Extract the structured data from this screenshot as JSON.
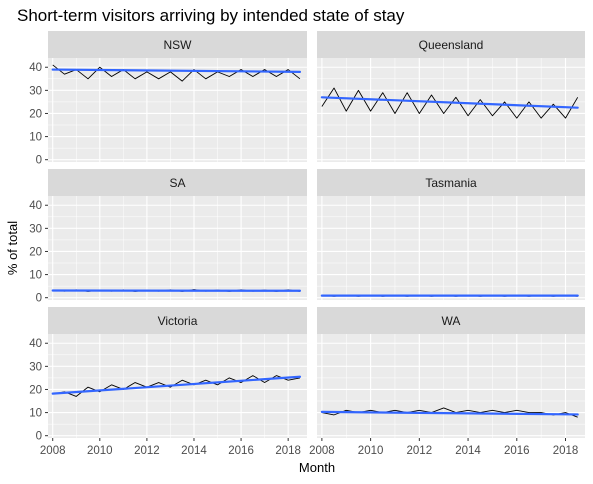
{
  "chart_data": {
    "type": "line",
    "title": "Short-term visitors arriving by intended state of stay",
    "xlabel": "Month",
    "ylabel": "% of total",
    "xlim": [
      2007.8,
      2018.8
    ],
    "ylim": [
      -1,
      44
    ],
    "x_ticks": [
      2008,
      2010,
      2012,
      2014,
      2016,
      2018
    ],
    "y_ticks": [
      0,
      10,
      20,
      30,
      40
    ],
    "x_tick_labels": [
      "2008",
      "2010",
      "2012",
      "2014",
      "2016",
      "2018"
    ],
    "y_tick_labels": [
      "0",
      "10",
      "20",
      "30",
      "40"
    ],
    "facets": [
      {
        "name": "NSW",
        "x": [
          2008.0,
          2008.5,
          2009.0,
          2009.5,
          2010.0,
          2010.5,
          2011.0,
          2011.5,
          2012.0,
          2012.5,
          2013.0,
          2013.5,
          2014.0,
          2014.5,
          2015.0,
          2015.5,
          2016.0,
          2016.5,
          2017.0,
          2017.5,
          2018.0,
          2018.5
        ],
        "values": [
          41,
          37,
          39,
          35,
          40,
          36,
          39,
          35,
          38,
          35,
          38,
          34,
          39,
          35,
          38,
          36,
          39,
          36,
          39,
          36,
          39,
          35
        ],
        "trend": [
          39,
          38
        ]
      },
      {
        "name": "Queensland",
        "x": [
          2008.0,
          2008.5,
          2009.0,
          2009.5,
          2010.0,
          2010.5,
          2011.0,
          2011.5,
          2012.0,
          2012.5,
          2013.0,
          2013.5,
          2014.0,
          2014.5,
          2015.0,
          2015.5,
          2016.0,
          2016.5,
          2017.0,
          2017.5,
          2018.0,
          2018.5
        ],
        "values": [
          23,
          31,
          21,
          30,
          21,
          29,
          20,
          29,
          20,
          28,
          20,
          27,
          19,
          26,
          19,
          25,
          18,
          25,
          18,
          24,
          18,
          27
        ],
        "trend": [
          27,
          22.5
        ]
      },
      {
        "name": "SA",
        "x": [
          2008.0,
          2008.5,
          2009.0,
          2009.5,
          2010.0,
          2010.5,
          2011.0,
          2011.5,
          2012.0,
          2012.5,
          2013.0,
          2013.5,
          2014.0,
          2014.5,
          2015.0,
          2015.5,
          2016.0,
          2016.5,
          2017.0,
          2017.5,
          2018.0,
          2018.5
        ],
        "values": [
          3.3,
          2.8,
          3.4,
          2.7,
          3.3,
          2.8,
          3.4,
          2.7,
          3.3,
          2.8,
          3.4,
          2.7,
          3.5,
          2.8,
          3.3,
          2.7,
          3.4,
          2.8,
          3.3,
          2.7,
          3.4,
          2.7
        ],
        "trend": [
          3.1,
          3.0
        ]
      },
      {
        "name": "Tasmania",
        "x": [
          2008.0,
          2008.5,
          2009.0,
          2009.5,
          2010.0,
          2010.5,
          2011.0,
          2011.5,
          2012.0,
          2012.5,
          2013.0,
          2013.5,
          2014.0,
          2014.5,
          2015.0,
          2015.5,
          2016.0,
          2016.5,
          2017.0,
          2017.5,
          2018.0,
          2018.5
        ],
        "values": [
          1.1,
          0.6,
          1.1,
          0.6,
          1.1,
          0.6,
          1.1,
          0.6,
          1.1,
          0.6,
          1.1,
          0.6,
          1.1,
          0.6,
          1.1,
          0.6,
          1.1,
          0.6,
          1.1,
          0.6,
          1.1,
          0.6
        ],
        "trend": [
          0.9,
          0.9
        ]
      },
      {
        "name": "Victoria",
        "x": [
          2008.0,
          2008.5,
          2009.0,
          2009.5,
          2010.0,
          2010.5,
          2011.0,
          2011.5,
          2012.0,
          2012.5,
          2013.0,
          2013.5,
          2014.0,
          2014.5,
          2015.0,
          2015.5,
          2016.0,
          2016.5,
          2017.0,
          2017.5,
          2018.0,
          2018.5
        ],
        "values": [
          18,
          19,
          17,
          21,
          19,
          22,
          20,
          23,
          21,
          23,
          21,
          24,
          22,
          24,
          22,
          25,
          23,
          26,
          23,
          26,
          24,
          25
        ],
        "trend": [
          18.2,
          25.5
        ]
      },
      {
        "name": "WA",
        "x": [
          2008.0,
          2008.5,
          2009.0,
          2009.5,
          2010.0,
          2010.5,
          2011.0,
          2011.5,
          2012.0,
          2012.5,
          2013.0,
          2013.5,
          2014.0,
          2014.5,
          2015.0,
          2015.5,
          2016.0,
          2016.5,
          2017.0,
          2017.5,
          2018.0,
          2018.5
        ],
        "values": [
          10,
          9,
          11,
          10,
          11,
          10,
          11,
          10,
          11,
          10,
          12,
          10,
          11,
          10,
          11,
          10,
          11,
          10,
          10,
          9,
          10,
          8
        ],
        "trend": [
          10.3,
          9.2
        ]
      }
    ],
    "colors": {
      "series": "#000000",
      "trend": "#3366ff",
      "panel_background": "#ebebeb",
      "strip_background": "#d9d9d9",
      "gridline": "#ffffff"
    },
    "grid": true,
    "legend": "none"
  }
}
